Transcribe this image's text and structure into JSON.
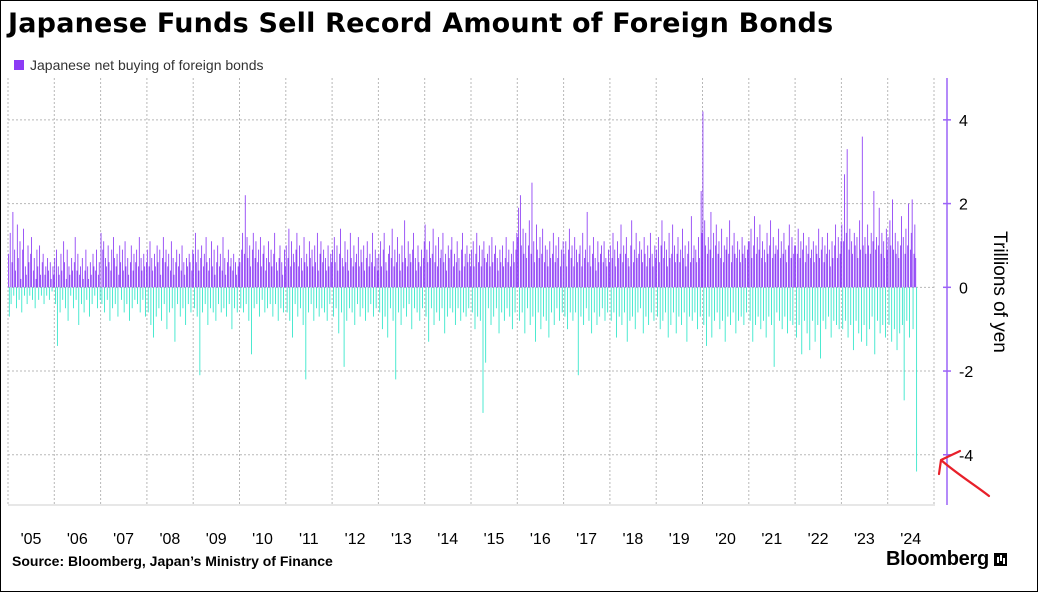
{
  "title": "Japanese Funds Sell Record Amount of Foreign Bonds",
  "source": "Source: Bloomberg, Japan’s Ministry of Finance",
  "brand": "Bloomberg",
  "colors": {
    "positive": "#8c3bf5",
    "negative": "#2ee6c9",
    "axis": "#9c63f7",
    "grid": "#b8b8b8",
    "annotation": "#e8202a"
  },
  "chart_data": {
    "type": "bar",
    "title": "Japanese Funds Sell Record Amount of Foreign Bonds",
    "ylabel": "Trillions of yen",
    "xlabel": "",
    "ylim": [
      -5.2,
      5.0
    ],
    "yticks": [
      4,
      2,
      0,
      -2,
      -4
    ],
    "ytick_labels": [
      "4",
      "2",
      "0",
      "-2",
      "-4"
    ],
    "grid": true,
    "legend_position": "top-left",
    "x_categories": [
      "'05",
      "'06",
      "'07",
      "'08",
      "'09",
      "'10",
      "'11",
      "'12",
      "'13",
      "'14",
      "'15",
      "'16",
      "'17",
      "'18",
      "'19",
      "'20",
      "'21",
      "'22",
      "'23",
      "'24"
    ],
    "series": [
      {
        "name": "Japanese net buying of foreign bonds",
        "frequency": "weekly",
        "start": 2005.0,
        "values_by_year": {
          "2005": [
            0.8,
            -0.7,
            1.3,
            -0.4,
            0.6,
            1.8,
            -0.2,
            0.9,
            0.4,
            -0.5,
            1.5,
            0.7,
            -0.3,
            1.1,
            0.2,
            -0.6,
            0.9,
            1.4,
            -0.2,
            0.5,
            0.3,
            -0.4,
            1.0,
            0.6,
            -0.2,
            0.8,
            1.2,
            -0.3,
            0.4,
            0.7,
            -0.5,
            0.2,
            0.9,
            0.5,
            -0.3,
            1.0,
            0.3,
            -0.2,
            0.6,
            0.8,
            -0.4,
            0.3,
            0.5,
            -0.2,
            0.7,
            0.4,
            -0.3,
            0.6,
            0.2,
            -0.1,
            0.5,
            0.3
          ],
          "2006": [
            0.7,
            -0.4,
            0.9,
            -1.4,
            0.5,
            0.3,
            -0.6,
            0.8,
            0.4,
            -0.3,
            1.1,
            0.6,
            -0.5,
            0.2,
            0.9,
            -0.8,
            0.5,
            0.3,
            -0.2,
            0.7,
            0.4,
            -0.5,
            0.6,
            1.2,
            -0.3,
            0.4,
            0.8,
            -0.9,
            0.3,
            0.5,
            -0.4,
            0.7,
            0.2,
            -0.6,
            0.4,
            0.9,
            -0.3,
            0.5,
            0.2,
            -0.7,
            0.6,
            0.3,
            -0.4,
            0.8,
            0.5,
            -0.2,
            0.4,
            0.9,
            -0.5,
            0.3,
            0.6,
            -0.3
          ],
          "2007": [
            1.3,
            -0.4,
            0.9,
            1.1,
            -0.6,
            0.7,
            0.5,
            -0.3,
            1.0,
            0.6,
            -0.8,
            0.4,
            0.9,
            -0.5,
            1.2,
            0.7,
            -0.4,
            0.5,
            0.8,
            -0.7,
            0.3,
            1.0,
            0.6,
            -0.3,
            0.9,
            0.4,
            -0.6,
            1.1,
            0.5,
            -0.4,
            0.7,
            0.3,
            -0.8,
            0.6,
            1.0,
            -0.5,
            0.4,
            0.8,
            -0.3,
            0.6,
            0.9,
            -0.4,
            0.5,
            1.2,
            -0.6,
            0.7,
            0.4,
            -0.3,
            0.8,
            0.5,
            -0.7,
            0.6
          ],
          "2008": [
            0.9,
            -0.6,
            0.5,
            1.1,
            -0.9,
            0.7,
            0.4,
            -1.2,
            0.8,
            0.5,
            -0.7,
            1.0,
            0.6,
            -0.5,
            0.9,
            0.3,
            -0.8,
            0.7,
            1.2,
            -0.4,
            0.6,
            0.9,
            -1.0,
            0.5,
            0.8,
            -0.6,
            0.4,
            1.1,
            -0.5,
            0.7,
            0.3,
            -1.3,
            0.6,
            0.9,
            -0.4,
            0.5,
            0.8,
            -0.7,
            0.4,
            1.0,
            -0.5,
            0.6,
            0.3,
            -0.9,
            0.7,
            0.5,
            -0.4,
            0.8,
            0.6,
            -0.6,
            0.4,
            0.9
          ],
          "2009": [
            0.8,
            -0.5,
            1.3,
            0.6,
            -0.7,
            0.9,
            0.4,
            -2.1,
            0.7,
            1.0,
            -0.6,
            0.5,
            0.8,
            -0.4,
            1.2,
            0.6,
            -0.9,
            0.4,
            0.7,
            -0.5,
            1.1,
            0.5,
            -0.6,
            0.9,
            0.3,
            -0.8,
            0.6,
            1.0,
            -0.4,
            0.5,
            0.8,
            -0.6,
            0.4,
            1.2,
            -0.5,
            0.7,
            0.3,
            -0.7,
            0.6,
            0.9,
            -0.4,
            0.5,
            0.7,
            -1.0,
            0.4,
            0.8,
            -0.5,
            0.6,
            0.3,
            -0.6,
            0.5,
            0.7
          ],
          "2010": [
            0.6,
            -0.5,
            0.9,
            1.3,
            -0.6,
            0.8,
            2.2,
            -0.4,
            1.2,
            0.7,
            -0.8,
            1.0,
            0.5,
            -1.6,
            0.9,
            1.3,
            -0.5,
            0.7,
            1.1,
            -0.4,
            0.6,
            0.9,
            -0.7,
            1.2,
            0.5,
            -0.3,
            0.8,
            1.0,
            -0.6,
            0.4,
            0.7,
            -0.5,
            1.1,
            0.6,
            -0.4,
            0.9,
            0.5,
            -0.7,
            0.8,
            1.3,
            -0.4,
            0.6,
            0.4,
            -0.8,
            0.7,
            1.0,
            -0.5,
            0.6,
            0.3,
            -0.6,
            0.9,
            0.5
          ],
          "2011": [
            1.0,
            -0.6,
            0.7,
            1.4,
            -0.8,
            0.5,
            1.1,
            -1.2,
            0.8,
            0.6,
            -0.4,
            0.9,
            1.3,
            -0.7,
            0.5,
            1.0,
            -0.5,
            0.7,
            0.4,
            -0.9,
            1.2,
            0.6,
            -2.2,
            0.8,
            0.5,
            -0.6,
            1.1,
            0.7,
            -0.4,
            0.9,
            0.5,
            -0.8,
            1.0,
            0.6,
            -0.5,
            1.3,
            0.4,
            -0.7,
            0.8,
            1.1,
            -0.5,
            0.6,
            0.9,
            -0.6,
            0.7,
            0.4,
            -0.8,
            1.0,
            0.5,
            -0.4,
            0.8,
            0.6
          ],
          "2012": [
            0.9,
            -0.7,
            1.2,
            0.6,
            -0.5,
            1.0,
            0.4,
            -1.1,
            0.8,
            1.4,
            -0.6,
            0.7,
            0.5,
            -1.9,
            1.1,
            0.6,
            -0.8,
            0.9,
            0.4,
            -0.5,
            1.3,
            0.7,
            -0.6,
            0.5,
            1.0,
            -0.9,
            0.6,
            0.8,
            -0.4,
            1.2,
            0.5,
            -0.7,
            0.9,
            0.6,
            -0.5,
            1.0,
            0.4,
            -0.8,
            0.7,
            1.1,
            -0.6,
            0.5,
            0.8,
            -0.4,
            0.6,
            1.3,
            -0.7,
            0.5,
            0.9,
            -0.5,
            0.7,
            0.4
          ],
          "2013": [
            0.8,
            -0.6,
            1.1,
            0.5,
            -1.0,
            0.9,
            1.3,
            -0.7,
            0.6,
            0.4,
            -1.2,
            0.8,
            1.0,
            -0.5,
            0.7,
            1.4,
            -0.8,
            0.5,
            0.9,
            -2.2,
            0.6,
            1.2,
            -0.6,
            0.8,
            0.4,
            -0.9,
            1.0,
            0.6,
            -0.5,
            1.6,
            0.7,
            -0.7,
            0.5,
            1.1,
            -0.4,
            0.8,
            0.6,
            -1.0,
            0.9,
            1.3,
            -0.5,
            0.7,
            0.4,
            -0.6,
            1.0,
            0.6,
            -0.8,
            0.5,
            0.9,
            -0.5,
            0.7,
            1.1
          ],
          "2014": [
            1.5,
            -0.7,
            0.9,
            0.6,
            -1.3,
            1.1,
            0.7,
            -0.5,
            0.8,
            1.4,
            -0.9,
            0.6,
            1.0,
            -0.6,
            0.5,
            1.2,
            -0.8,
            0.7,
            0.9,
            -0.5,
            1.3,
            0.6,
            -1.1,
            0.8,
            0.4,
            -0.7,
            1.0,
            0.7,
            -0.5,
            0.9,
            1.2,
            -0.6,
            0.5,
            0.8,
            -0.9,
            0.6,
            1.1,
            -0.5,
            0.7,
            0.4,
            -0.8,
            0.9,
            1.3,
            -0.6,
            0.5,
            0.8,
            -0.7,
            1.0,
            0.6,
            -0.5,
            0.8,
            0.5
          ],
          "2015": [
            0.9,
            -0.6,
            1.1,
            0.5,
            -1.0,
            0.8,
            1.3,
            -0.7,
            0.6,
            1.0,
            -0.8,
            0.5,
            0.9,
            -3.0,
            1.1,
            0.7,
            -1.8,
            0.6,
            0.8,
            -0.5,
            1.0,
            0.5,
            -0.9,
            1.2,
            0.6,
            -0.7,
            0.8,
            1.0,
            -0.5,
            0.7,
            0.4,
            -1.1,
            0.9,
            0.6,
            -0.6,
            1.0,
            0.5,
            -0.8,
            0.7,
            1.2,
            -0.5,
            0.6,
            0.9,
            -0.7,
            0.5,
            0.8,
            -1.0,
            1.1,
            0.6,
            -0.6,
            0.9,
            1.3
          ],
          "2016": [
            1.2,
            1.9,
            -0.8,
            2.2,
            1.0,
            -0.6,
            1.4,
            0.8,
            -1.1,
            1.3,
            0.7,
            -0.5,
            1.0,
            1.6,
            -0.9,
            0.8,
            2.5,
            -0.7,
            1.1,
            0.6,
            -1.3,
            1.5,
            0.9,
            -0.6,
            0.7,
            1.2,
            -1.0,
            0.8,
            1.4,
            -0.7,
            0.6,
            1.0,
            -0.8,
            0.9,
            0.5,
            -1.2,
            1.1,
            0.7,
            -0.6,
            0.8,
            1.3,
            -0.9,
            0.6,
            1.0,
            -0.5,
            0.7,
            1.2,
            -0.8,
            0.5,
            0.9,
            -0.6,
            1.1
          ],
          "2017": [
            0.8,
            -0.7,
            1.1,
            0.5,
            -1.0,
            0.9,
            1.4,
            -0.6,
            0.7,
            1.0,
            -0.8,
            0.5,
            1.2,
            -0.6,
            0.9,
            0.6,
            -2.1,
            0.8,
            1.0,
            -0.7,
            0.5,
            1.3,
            -0.9,
            0.7,
            0.9,
            -0.5,
            1.8,
            0.6,
            -0.8,
            1.0,
            0.5,
            -1.1,
            0.8,
            1.2,
            -0.6,
            0.7,
            0.4,
            -0.9,
            1.1,
            0.6,
            -0.7,
            0.8,
            1.0,
            -0.5,
            0.6,
            1.1,
            -0.8,
            0.7,
            0.5,
            -0.6,
            0.9,
            0.6
          ],
          "2018": [
            1.0,
            -0.8,
            0.7,
            1.3,
            -0.6,
            0.9,
            0.5,
            -1.2,
            1.1,
            0.7,
            -0.7,
            0.8,
            1.5,
            -0.9,
            0.6,
            1.0,
            -0.6,
            0.8,
            1.2,
            -1.3,
            0.7,
            0.5,
            -0.8,
            1.0,
            1.6,
            -0.7,
            0.6,
            0.9,
            -1.0,
            1.3,
            0.7,
            -0.6,
            0.8,
            1.1,
            -0.5,
            0.9,
            0.6,
            -1.1,
            1.2,
            0.8,
            -0.7,
            0.5,
            1.0,
            -0.9,
            0.7,
            1.3,
            -0.6,
            0.8,
            0.5,
            -0.8,
            1.0,
            0.7
          ],
          "2019": [
            0.9,
            -0.7,
            1.2,
            0.6,
            -1.0,
            1.0,
            1.6,
            -0.8,
            0.7,
            1.1,
            -0.6,
            0.9,
            0.5,
            -1.2,
            1.3,
            0.7,
            -0.9,
            0.8,
            1.5,
            -0.6,
            1.0,
            0.6,
            -1.1,
            0.8,
            1.2,
            -0.7,
            0.6,
            0.9,
            -0.9,
            1.4,
            0.7,
            -0.6,
            1.0,
            0.5,
            -1.3,
            0.8,
            1.1,
            -0.7,
            0.6,
            1.7,
            -0.8,
            0.7,
            1.0,
            -0.6,
            0.9,
            0.6,
            -1.0,
            1.2,
            0.7,
            -0.7,
            2.3,
            1.3
          ],
          "2020": [
            4.2,
            -0.9,
            1.6,
            1.0,
            -1.4,
            0.8,
            1.2,
            -0.7,
            0.9,
            1.8,
            -1.2,
            0.7,
            1.3,
            -0.8,
            1.0,
            1.5,
            -0.6,
            0.8,
            1.1,
            -1.0,
            0.7,
            1.4,
            -0.8,
            0.6,
            1.0,
            -1.3,
            0.9,
            1.2,
            -0.7,
            0.8,
            1.6,
            -0.9,
            0.6,
            1.0,
            -0.6,
            1.3,
            0.8,
            -1.1,
            0.7,
            1.1,
            -0.8,
            0.9,
            0.6,
            -0.7,
            1.2,
            0.8,
            -0.9,
            1.0,
            0.7,
            -0.6,
            0.9,
            1.1
          ],
          "2021": [
            1.1,
            -0.8,
            1.4,
            0.7,
            -1.3,
            1.0,
            1.7,
            -0.9,
            0.8,
            1.2,
            -0.7,
            0.9,
            1.5,
            -1.0,
            0.7,
            1.1,
            -0.8,
            0.9,
            0.6,
            -1.2,
            1.3,
            0.8,
            -0.7,
            1.0,
            1.6,
            -0.9,
            0.7,
            1.2,
            -1.9,
            0.8,
            1.0,
            -0.6,
            0.9,
            1.4,
            -0.8,
            0.7,
            1.1,
            -1.0,
            0.8,
            1.3,
            -0.7,
            0.9,
            0.6,
            -1.1,
            1.0,
            1.5,
            -0.8,
            0.7,
            1.2,
            -0.9,
            0.8,
            1.0
          ],
          "2022": [
            1.0,
            -1.2,
            0.8,
            1.4,
            -0.9,
            0.7,
            1.1,
            -1.6,
            0.9,
            1.3,
            -0.8,
            0.6,
            1.0,
            -1.1,
            0.8,
            1.2,
            -1.5,
            0.7,
            0.9,
            -0.8,
            1.1,
            0.6,
            -1.3,
            1.0,
            0.8,
            -0.9,
            1.4,
            0.7,
            -1.7,
            0.9,
            1.2,
            -0.8,
            0.6,
            1.0,
            -1.0,
            0.8,
            1.3,
            -0.7,
            0.9,
            0.5,
            -1.2,
            1.1,
            0.7,
            -0.8,
            1.0,
            1.5,
            -0.9,
            0.7,
            1.2,
            -1.0,
            0.8,
            1.1
          ],
          "2023": [
            1.5,
            -1.0,
            1.1,
            2.7,
            -0.8,
            1.3,
            3.3,
            -1.2,
            0.9,
            1.4,
            -0.9,
            1.1,
            0.8,
            -1.5,
            1.3,
            1.0,
            -0.8,
            1.2,
            0.7,
            -1.1,
            1.6,
            0.9,
            -1.3,
            3.6,
            1.0,
            -0.9,
            1.2,
            0.8,
            -1.4,
            1.5,
            1.0,
            -1.0,
            0.8,
            1.3,
            -0.7,
            1.1,
            2.3,
            -1.6,
            0.9,
            1.2,
            -0.8,
            1.0,
            1.9,
            -1.1,
            0.8,
            1.3,
            -0.9,
            1.1,
            0.7,
            -1.2,
            1.4,
            0.9
          ],
          "2024": [
            1.2,
            -0.9,
            1.6,
            1.0,
            -1.3,
            2.1,
            0.9,
            -1.0,
            1.3,
            0.8,
            -1.5,
            1.1,
            0.7,
            -1.1,
            1.0,
            1.7,
            -0.9,
            1.2,
            -2.7,
            0.8,
            1.4,
            -0.8,
            1.0,
            2.0,
            -1.2,
            0.9,
            1.3,
            2.1,
            -1.0,
            0.8,
            1.5,
            0.7,
            -4.4
          ]
        }
      }
    ],
    "annotation": {
      "type": "arrow",
      "color": "#e8202a",
      "points_to": "record low week in 2024"
    }
  }
}
